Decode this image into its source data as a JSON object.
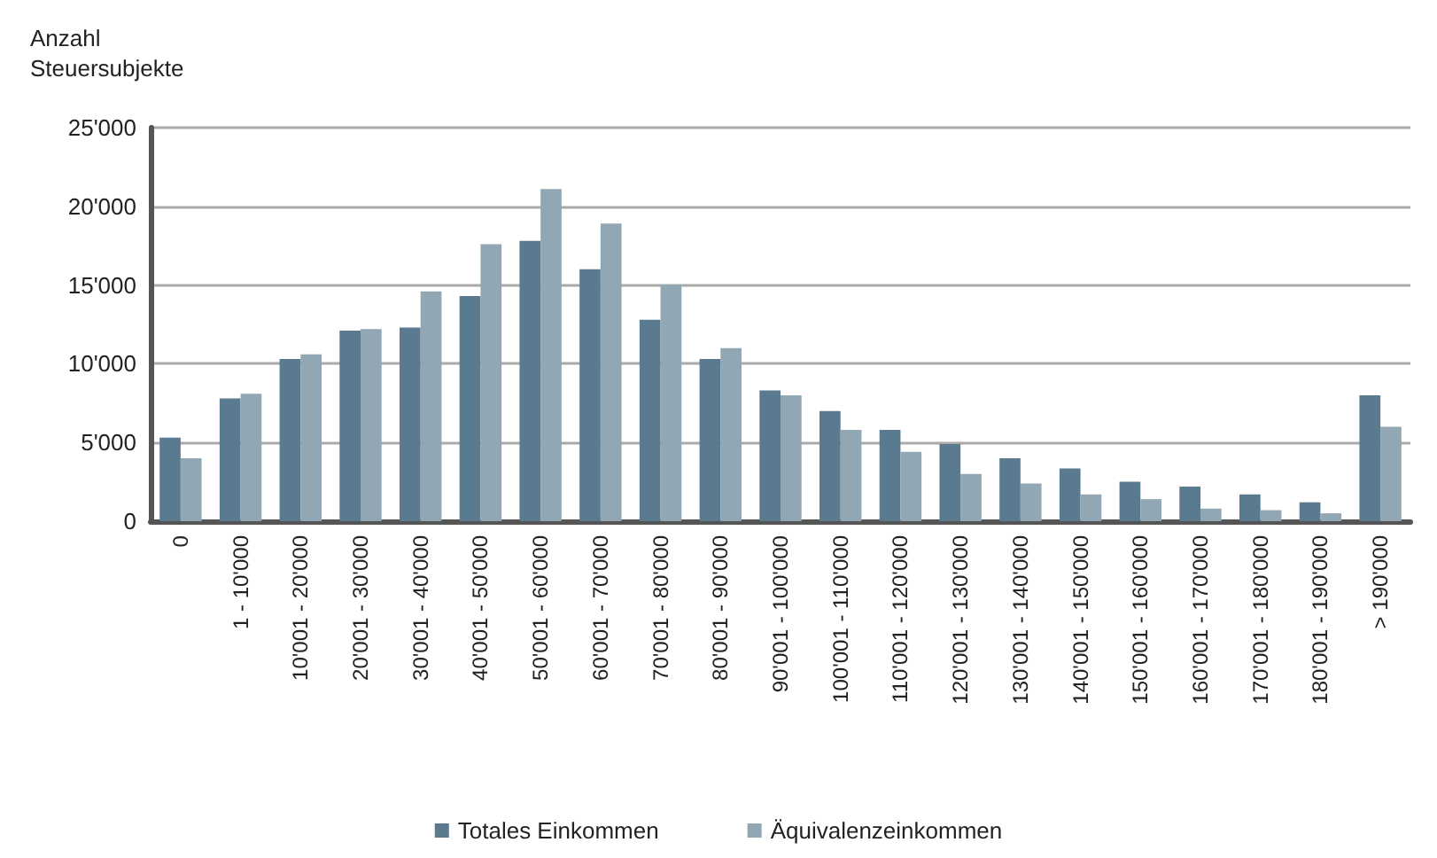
{
  "chart_data": {
    "type": "bar",
    "ylabel": "Anzahl\nSteuersubjekte",
    "categories": [
      "0",
      "1 - 10'000",
      "10'001 - 20'000",
      "20'001 - 30'000",
      "30'001 - 40'000",
      "40'001 - 50'000",
      "50'001 - 60'000",
      "60'001 - 70'000",
      "70'001 - 80'000",
      "80'001 - 90'000",
      "90'001 - 100'000",
      "100'001 - 110'000",
      "110'001 - 120'000",
      "120'001 - 130'000",
      "130'001 - 140'000",
      "140'001 - 150'000",
      "150'001 - 160'000",
      "160'001 - 170'000",
      "170'001 - 180'000",
      "180'001 - 190'000",
      "> 190'000"
    ],
    "series": [
      {
        "name": "Totales Einkommen",
        "color": "#5a7a8f",
        "values": [
          5300,
          7800,
          10300,
          12100,
          12300,
          14300,
          17800,
          16000,
          12800,
          10300,
          8300,
          7000,
          5800,
          4900,
          4000,
          3350,
          2500,
          2200,
          1700,
          1200,
          8000
        ]
      },
      {
        "name": "Äquivalenzeinkommen",
        "color": "#91a7b4",
        "values": [
          4000,
          8100,
          10600,
          12200,
          14600,
          17600,
          21100,
          18900,
          15000,
          11000,
          8000,
          5800,
          4400,
          3000,
          2400,
          1700,
          1400,
          800,
          700,
          500,
          6000
        ]
      }
    ],
    "ylim": [
      0,
      25000
    ],
    "yticks": [
      {
        "value": 0,
        "label": "0"
      },
      {
        "value": 5000,
        "label": "5'000"
      },
      {
        "value": 10000,
        "label": "10'000"
      },
      {
        "value": 15000,
        "label": "15'000"
      },
      {
        "value": 20000,
        "label": "20'000"
      },
      {
        "value": 25000,
        "label": "25'000"
      }
    ],
    "grid": "y",
    "legend": "bottom"
  }
}
